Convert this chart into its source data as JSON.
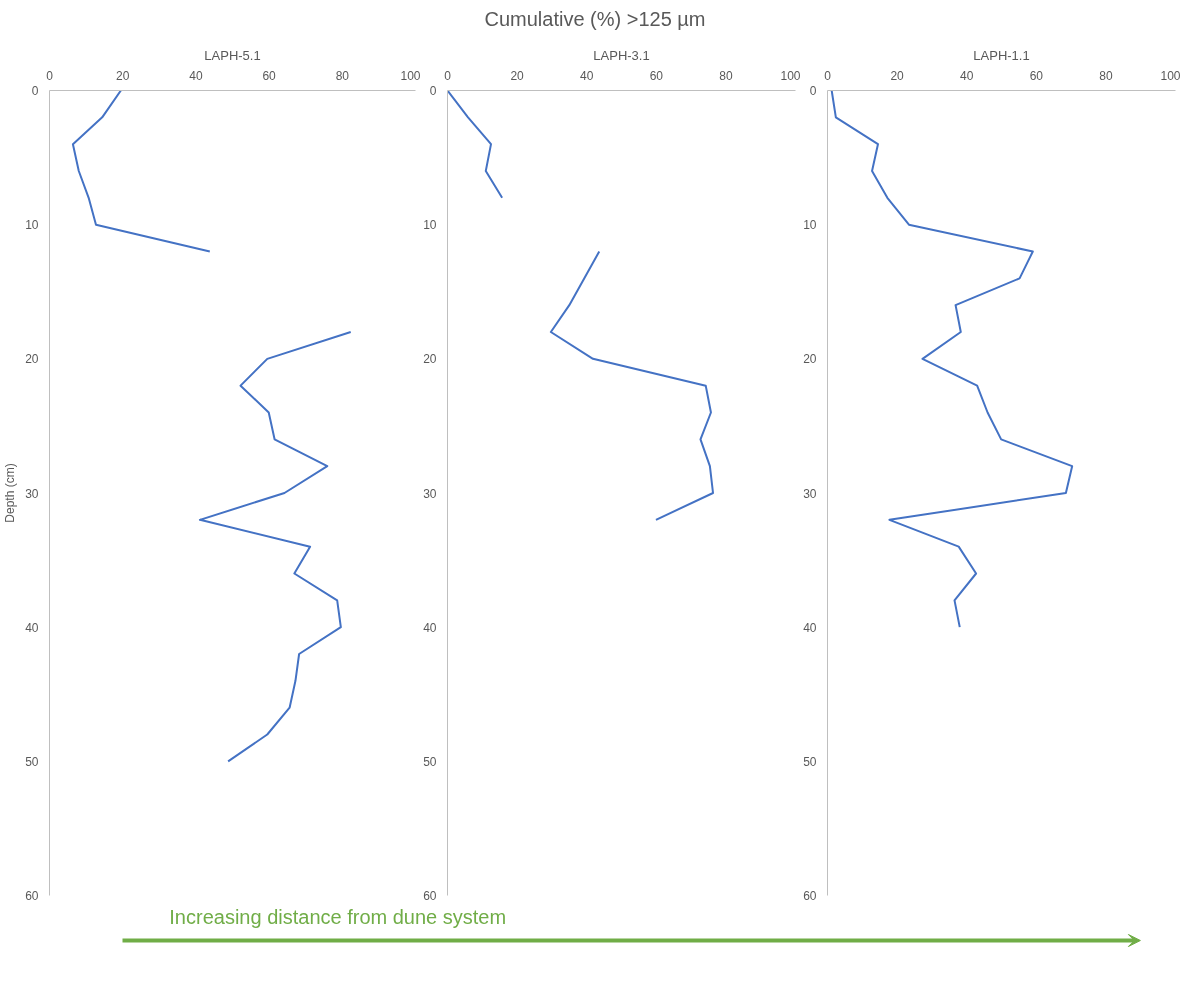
{
  "chart_data": [
    {
      "type": "line",
      "title": "LAPH-5.1",
      "ylabel": "Depth (cm)",
      "annotations": [
        "Increasing distance from dune system"
      ],
      "color": "#4472c4",
      "xlim": [
        0,
        100
      ],
      "xticks": [
        0,
        20,
        40,
        60,
        80,
        100
      ],
      "ylim": [
        60,
        0
      ],
      "yticks": [
        0,
        10,
        20,
        30,
        40,
        50,
        60
      ],
      "line_style": "solid",
      "x": [
        19.5,
        14.4,
        6.4,
        8,
        10.7,
        12.7,
        43.8,
        null,
        82.3,
        59.5,
        52.2,
        59.9,
        61.5,
        75.9,
        64.2,
        41.1,
        71.2,
        66.9,
        78.6,
        79.6,
        68.2,
        67.2,
        65.6,
        59.5,
        48.8
      ],
      "values": [
        0,
        2,
        4,
        6,
        8,
        10,
        12,
        null,
        18,
        20,
        22,
        24,
        26,
        28,
        30,
        32,
        34,
        36,
        38,
        40,
        42,
        44,
        46,
        48,
        50
      ]
    },
    {
      "type": "line",
      "title": "LAPH-3.1",
      "xlabel": "Cumulative (%) >125 µm",
      "color": "#4472c4",
      "xlim": [
        0,
        100
      ],
      "xticks": [
        0,
        20,
        40,
        60,
        80,
        100
      ],
      "ylim": [
        60,
        0
      ],
      "yticks": [
        0,
        10,
        20,
        30,
        40,
        50,
        60
      ],
      "line_style": "solid",
      "x": [
        0,
        5.9,
        12.5,
        11,
        15.7,
        null,
        43.6,
        35,
        29.7,
        41.8,
        74.2,
        75.7,
        72.7,
        75.4,
        76.3,
        59.9
      ],
      "values": [
        0,
        2,
        4,
        6,
        8,
        null,
        12,
        16,
        18,
        20,
        22,
        24,
        26,
        28,
        30,
        32
      ]
    },
    {
      "type": "line",
      "title": "LAPH-1.1",
      "color": "#4472c4",
      "xlim": [
        0,
        100
      ],
      "xticks": [
        0,
        20,
        40,
        60,
        80,
        100
      ],
      "ylim": [
        60,
        0
      ],
      "yticks": [
        0,
        10,
        20,
        30,
        40,
        50,
        60
      ],
      "line_style": "solid",
      "x": [
        1.2,
        2.4,
        14.5,
        12.8,
        17.2,
        23.4,
        59,
        55.2,
        36.8,
        38.3,
        27.3,
        43,
        46,
        49.9,
        70.3,
        68.5,
        17.8,
        37.7,
        42.7,
        36.5,
        38
      ],
      "values": [
        0,
        2,
        4,
        6,
        8,
        10,
        12,
        14,
        16,
        18,
        20,
        22,
        24,
        26,
        28,
        30,
        32,
        34,
        36,
        38,
        40
      ]
    }
  ]
}
